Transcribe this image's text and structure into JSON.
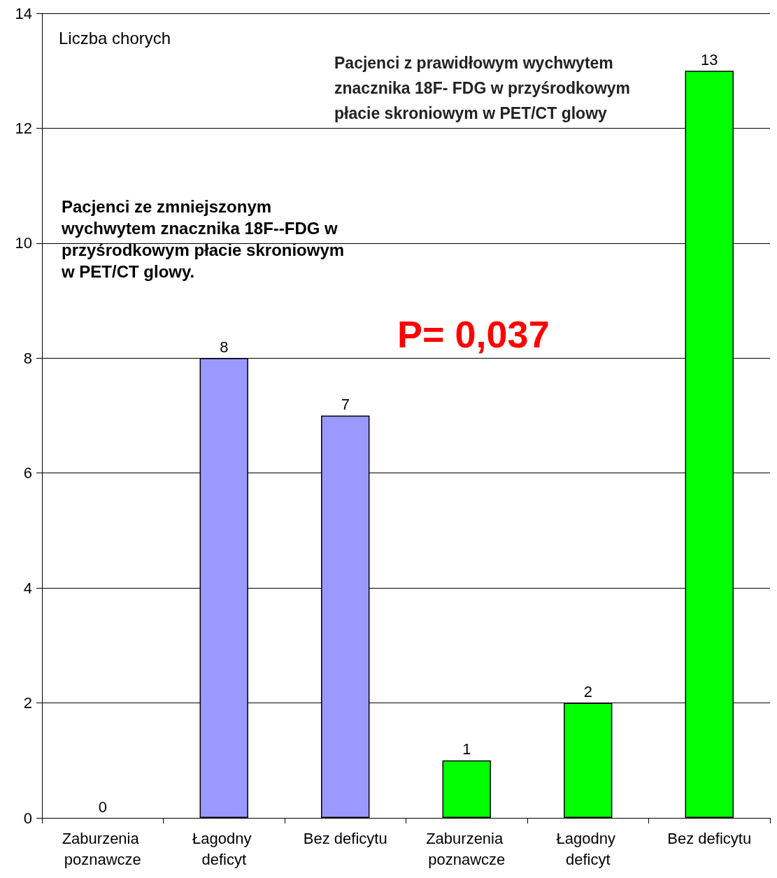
{
  "chart_data": {
    "type": "bar",
    "ylabel": "Liczba chorych",
    "categories": [
      "Zaburzenia poznawcze",
      "Łagodny deficyt",
      "Bez deficytu",
      "Zaburzenia poznawcze",
      "Łagodny deficyt",
      "Bez deficytu"
    ],
    "values": [
      0,
      8,
      7,
      1,
      2,
      13
    ],
    "colors": [
      "#9999ff",
      "#9999ff",
      "#9999ff",
      "#00ff00",
      "#00ff00",
      "#00ff00"
    ],
    "ylim": [
      0,
      14
    ],
    "yticks": [
      0,
      2,
      4,
      6,
      8,
      10,
      12,
      14
    ],
    "grid": "y",
    "data_labels": true,
    "annotations": [
      "Pacjenci ze zmniejszonym wychwytem znacznika 18F--FDG w przyśrodkowym płacie skroniowym w PET/CT glowy.",
      "Pacjenci z prawidłowym wychwytem znacznika 18F- FDG w przyśrodkowym płacie skroniowym w PET/CT glowy",
      "P= 0,037"
    ]
  }
}
